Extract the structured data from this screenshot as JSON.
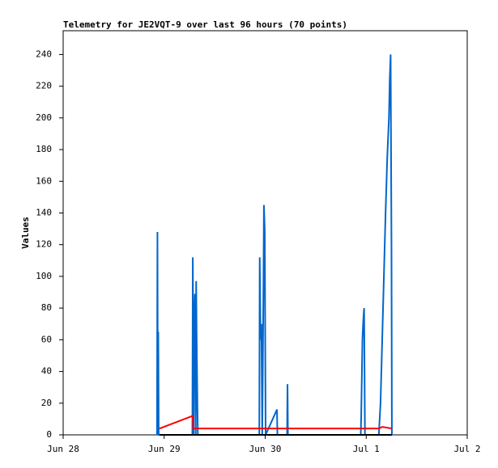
{
  "chart_data": {
    "type": "line",
    "title": "Telemetry for JE2VQT-9 over last 96 hours (70 points)",
    "y_label": "Values",
    "xlim": [
      0,
      96
    ],
    "ylim": [
      0,
      255
    ],
    "xticks": [
      {
        "value": 0,
        "label": "Jun 28"
      },
      {
        "value": 24,
        "label": "Jun 29"
      },
      {
        "value": 48,
        "label": "Jun 30"
      },
      {
        "value": 72,
        "label": "Jul 1"
      },
      {
        "value": 96,
        "label": "Jul 2"
      }
    ],
    "yticks": [
      0,
      20,
      40,
      60,
      80,
      100,
      120,
      140,
      160,
      180,
      200,
      220,
      240
    ],
    "series": [
      {
        "color": "#000000",
        "x": [
          22.9,
          78.1
        ],
        "values": [
          0,
          0
        ]
      },
      {
        "color": "#ff0000",
        "x": [
          22.9,
          30.8,
          30.9,
          75.0,
          75.8,
          78.1
        ],
        "values": [
          4,
          12,
          4,
          4,
          5,
          4
        ]
      },
      {
        "color": "#0066cc",
        "x": [
          22.3,
          22.4,
          22.5,
          22.6,
          22.7,
          30.7,
          30.8,
          31.0,
          31.1,
          31.3,
          31.5,
          31.6,
          31.7,
          31.9,
          32.0,
          46.6,
          46.7,
          46.9,
          47.1,
          47.3,
          47.6,
          47.7,
          47.9,
          48.1,
          50.8,
          50.9,
          53.2,
          53.3,
          53.4,
          70.7,
          70.8,
          71.1,
          71.3,
          71.5,
          71.7,
          75.0,
          75.4,
          75.8,
          76.2,
          76.6,
          77.0,
          77.4,
          77.6,
          77.8,
          78.0,
          78.1
        ],
        "values": [
          0,
          128,
          0,
          65,
          0,
          0,
          112,
          0,
          72,
          89,
          0,
          97,
          65,
          17,
          0,
          0,
          112,
          60,
          70,
          0,
          100,
          145,
          128,
          0,
          16,
          0,
          0,
          32,
          0,
          0,
          10,
          60,
          72,
          80,
          0,
          0,
          20,
          60,
          100,
          140,
          175,
          200,
          225,
          240,
          120,
          0
        ]
      }
    ]
  }
}
